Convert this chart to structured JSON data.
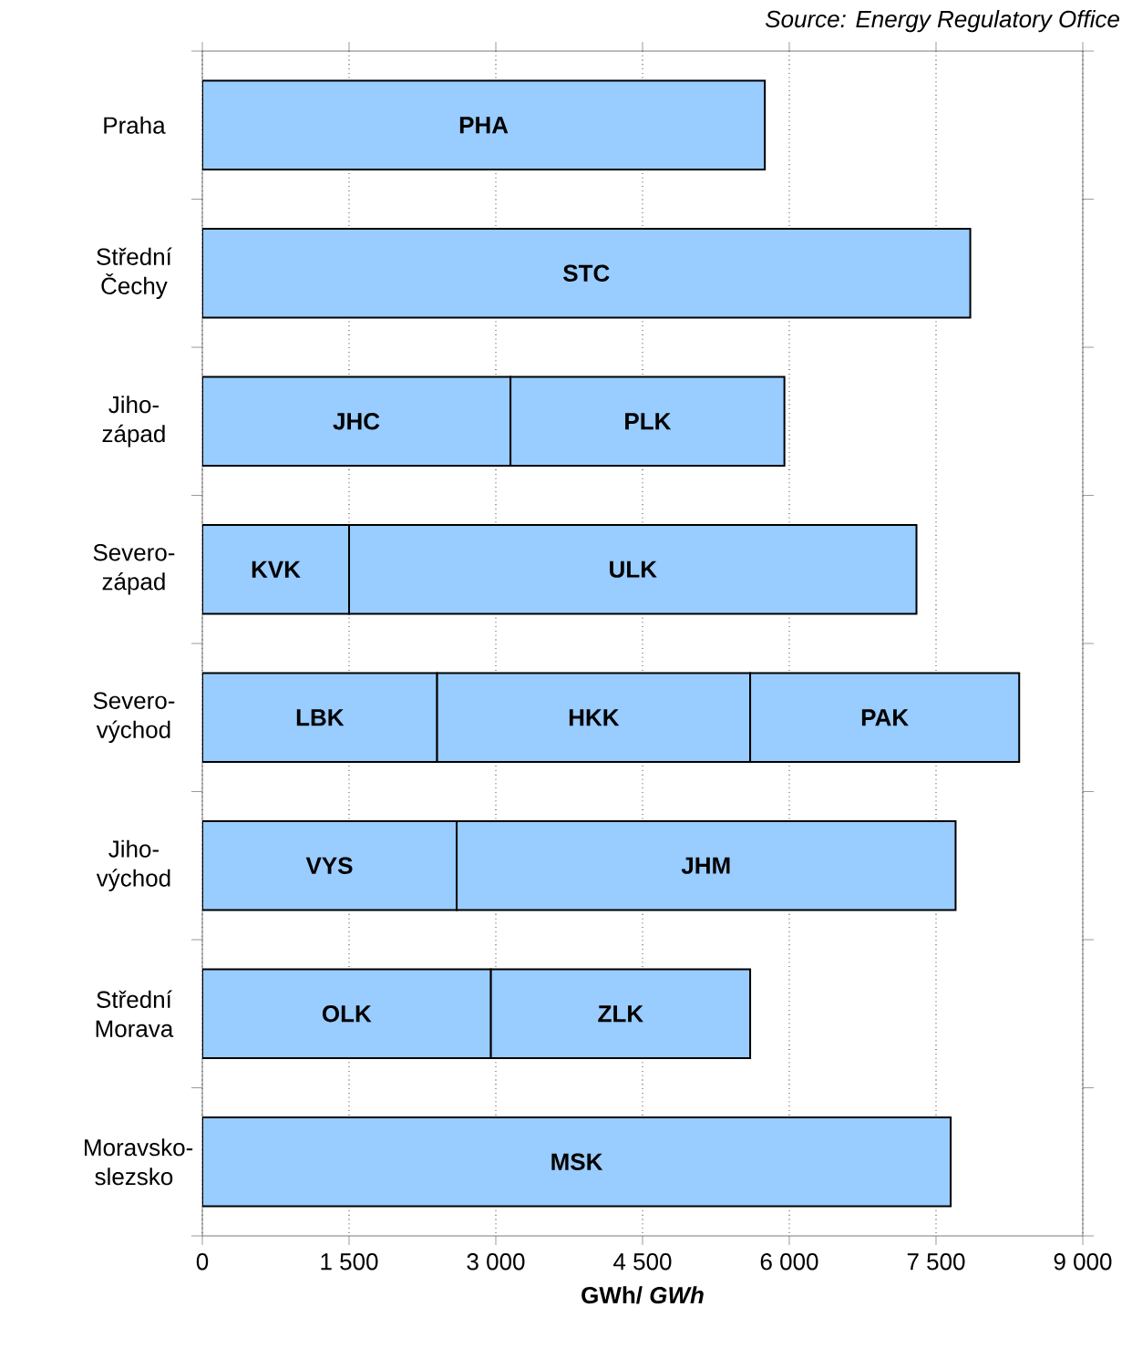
{
  "chart_data": {
    "type": "bar",
    "orientation": "horizontal",
    "stacked": true,
    "annotations": [
      "Source: Energy Regulatory Office"
    ],
    "xlabel": "GWh/ *GWh*",
    "categories": [
      "Praha",
      "Střední Čechy",
      "Jiho-západ",
      "Severo-západ",
      "Severo-východ",
      "Jiho-východ",
      "Střední Morava",
      "Moravsko-slezsko"
    ],
    "series": [
      {
        "color": "#99ccff",
        "values": [
          5750,
          7850,
          3150,
          1500,
          2400,
          2600,
          2950,
          7650
        ],
        "value_labels": [
          "PHA",
          "STC",
          "JHC",
          "KVK",
          "LBK",
          "VYS",
          "OLK",
          "MSK"
        ]
      },
      {
        "color": "#99ccff",
        "values": [
          null,
          null,
          2800,
          5800,
          3200,
          5100,
          2650,
          null
        ],
        "value_labels": [
          null,
          null,
          "PLK",
          "ULK",
          "HKK",
          "JHM",
          "ZLK",
          null
        ]
      },
      {
        "color": "#99ccff",
        "values": [
          null,
          null,
          null,
          null,
          2750,
          null,
          null,
          null
        ],
        "value_labels": [
          null,
          null,
          null,
          null,
          "PAK",
          null,
          null,
          null
        ]
      }
    ],
    "xlim": [
      0,
      9000
    ],
    "xticks": [
      0,
      {
        "value": 1500,
        "label": "1 500"
      },
      {
        "value": 3000,
        "label": "3 000"
      },
      {
        "value": 4500,
        "label": "4 500"
      },
      {
        "value": 6000,
        "label": "6 000"
      },
      {
        "value": 7500,
        "label": "7 500"
      },
      {
        "value": 9000,
        "label": "9 000"
      }
    ],
    "grid": "x"
  }
}
